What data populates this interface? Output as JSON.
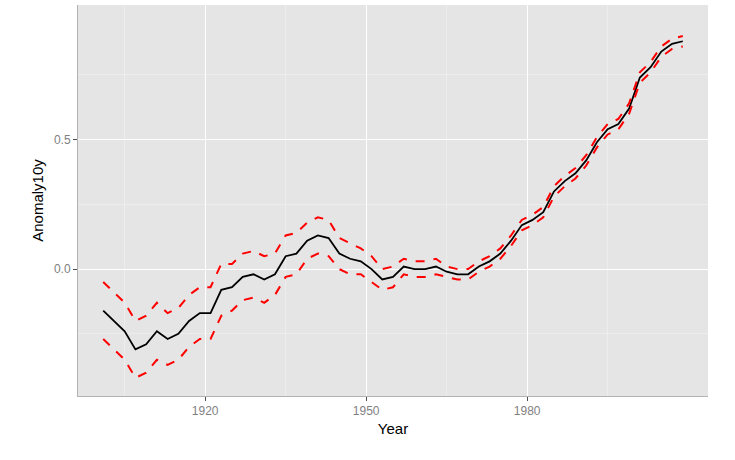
{
  "chart_data": {
    "type": "line",
    "x_label": "Year",
    "y_label": "Anomaly10y",
    "x": [
      1901,
      1903,
      1905,
      1907,
      1909,
      1911,
      1913,
      1915,
      1917,
      1919,
      1921,
      1923,
      1925,
      1927,
      1929,
      1931,
      1933,
      1935,
      1937,
      1939,
      1941,
      1943,
      1945,
      1947,
      1949,
      1951,
      1953,
      1955,
      1957,
      1959,
      1961,
      1963,
      1965,
      1967,
      1969,
      1971,
      1973,
      1975,
      1977,
      1979,
      1981,
      1983,
      1985,
      1987,
      1989,
      1991,
      1993,
      1995,
      1997,
      1999,
      2001,
      2003,
      2005,
      2007,
      2009
    ],
    "series": [
      {
        "color": "#000000",
        "line_style": "solid",
        "values": [
          -0.16,
          -0.2,
          -0.24,
          -0.31,
          -0.29,
          -0.24,
          -0.27,
          -0.25,
          -0.2,
          -0.17,
          -0.17,
          -0.08,
          -0.07,
          -0.03,
          -0.02,
          -0.04,
          -0.02,
          0.05,
          0.06,
          0.11,
          0.13,
          0.12,
          0.06,
          0.04,
          0.03,
          0.0,
          -0.04,
          -0.03,
          0.01,
          0.0,
          0.0,
          0.01,
          -0.01,
          -0.02,
          -0.02,
          0.01,
          0.03,
          0.06,
          0.11,
          0.17,
          0.19,
          0.22,
          0.3,
          0.34,
          0.37,
          0.42,
          0.49,
          0.54,
          0.56,
          0.62,
          0.74,
          0.78,
          0.84,
          0.87,
          0.88
        ]
      },
      {
        "color": "#ff0000",
        "line_style": "dashed",
        "values": [
          -0.05,
          -0.09,
          -0.13,
          -0.2,
          -0.18,
          -0.13,
          -0.17,
          -0.15,
          -0.1,
          -0.07,
          -0.07,
          0.02,
          0.02,
          0.06,
          0.07,
          0.05,
          0.06,
          0.13,
          0.14,
          0.18,
          0.2,
          0.19,
          0.12,
          0.1,
          0.08,
          0.05,
          0.0,
          0.01,
          0.04,
          0.03,
          0.03,
          0.04,
          0.01,
          0.0,
          0.0,
          0.03,
          0.05,
          0.08,
          0.13,
          0.19,
          0.21,
          0.24,
          0.32,
          0.36,
          0.39,
          0.44,
          0.51,
          0.56,
          0.58,
          0.64,
          0.76,
          0.8,
          0.86,
          0.89,
          0.9
        ]
      },
      {
        "color": "#ff0000",
        "line_style": "dashed",
        "values": [
          -0.27,
          -0.31,
          -0.35,
          -0.42,
          -0.4,
          -0.35,
          -0.37,
          -0.35,
          -0.3,
          -0.27,
          -0.27,
          -0.18,
          -0.16,
          -0.12,
          -0.11,
          -0.13,
          -0.1,
          -0.03,
          -0.02,
          0.04,
          0.06,
          0.05,
          0.0,
          -0.02,
          -0.02,
          -0.05,
          -0.08,
          -0.07,
          -0.02,
          -0.03,
          -0.03,
          -0.02,
          -0.03,
          -0.04,
          -0.04,
          -0.01,
          0.01,
          0.04,
          0.09,
          0.15,
          0.17,
          0.2,
          0.28,
          0.32,
          0.35,
          0.4,
          0.47,
          0.52,
          0.54,
          0.6,
          0.72,
          0.76,
          0.82,
          0.85,
          0.86
        ]
      }
    ],
    "xlim": [
      1896.3,
      2013.7
    ],
    "ylim": [
      -0.49,
      1.02
    ],
    "xticks": [
      1920,
      1950,
      1980
    ],
    "yticks": [
      {
        "value": 0,
        "label": "0.0"
      },
      {
        "value": 0.5,
        "label": "0.5"
      }
    ],
    "grid": true
  }
}
